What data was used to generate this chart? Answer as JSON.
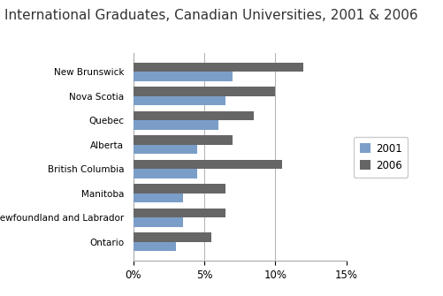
{
  "title": "International Graduates, Canadian Universities, 2001 & 2006",
  "provinces": [
    "New Brunswick",
    "Nova Scotia",
    "Quebec",
    "Alberta",
    "British Columbia",
    "Manitoba",
    "Newfoundland and Labrador",
    "Ontario"
  ],
  "values_2001": [
    7.0,
    6.5,
    6.0,
    4.5,
    4.5,
    3.5,
    3.5,
    3.0
  ],
  "values_2006": [
    12.0,
    10.0,
    8.5,
    7.0,
    10.5,
    6.5,
    6.5,
    5.5
  ],
  "color_2001": "#7B9EC9",
  "color_2006": "#666666",
  "xlim": [
    0,
    15
  ],
  "xticks": [
    0,
    5,
    10,
    15
  ],
  "legend_labels": [
    "2001",
    "2006"
  ],
  "background_color": "#ffffff",
  "title_fontsize": 11
}
